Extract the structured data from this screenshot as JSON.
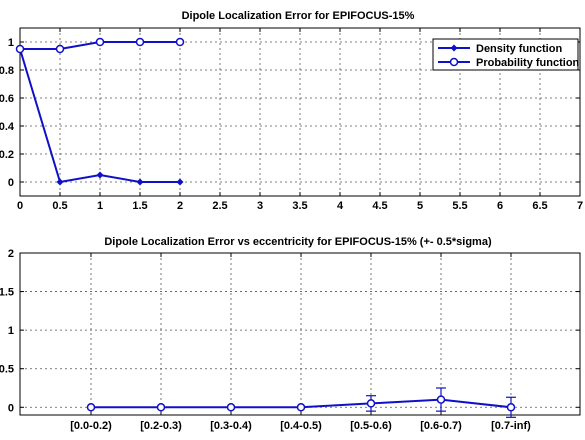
{
  "chart_data": [
    {
      "type": "line",
      "title": "Dipole Localization Error for EPIFOCUS-15%",
      "xlabel": "",
      "ylabel": "",
      "xlim": [
        0,
        7
      ],
      "ylim": [
        -0.1,
        1.1
      ],
      "xticks": [
        "0",
        "0.5",
        "1",
        "1.5",
        "2",
        "2.5",
        "3",
        "3.5",
        "4",
        "4.5",
        "5",
        "5.5",
        "6",
        "6.5",
        "7"
      ],
      "yticks": [
        "0",
        "0.2",
        "0.4",
        "0.6",
        "0.8",
        "1"
      ],
      "grid": true,
      "legend_position": "top-right",
      "series": [
        {
          "name": "Density function",
          "marker": "diamond",
          "color": "#1010c8",
          "x": [
            0,
            0.5,
            1,
            1.5,
            2
          ],
          "y": [
            0.95,
            0.0,
            0.05,
            0.0,
            0.0
          ]
        },
        {
          "name": "Probability function",
          "marker": "circle",
          "color": "#1010c8",
          "x": [
            0,
            0.5,
            1,
            1.5,
            2
          ],
          "y": [
            0.95,
            0.95,
            1.0,
            1.0,
            1.0
          ]
        }
      ]
    },
    {
      "type": "line",
      "title": "Dipole Localization Error vs eccentricity for EPIFOCUS-15% (+- 0.5*sigma)",
      "xlabel": "",
      "ylabel": "",
      "ylim": [
        -0.1,
        2
      ],
      "yticks": [
        "0",
        "0.5",
        "1",
        "1.5",
        "2"
      ],
      "grid": true,
      "categories": [
        "[0.0-0.2)",
        "[0.2-0.3)",
        "[0.3-0.4)",
        "[0.4-0.5)",
        "[0.5-0.6)",
        "[0.6-0.7)",
        "[0.7-inf)"
      ],
      "series": [
        {
          "marker": "circle",
          "color": "#1010c8",
          "values": [
            0,
            0,
            0,
            0,
            0.05,
            0.1,
            0.0
          ],
          "error": [
            0,
            0,
            0,
            0,
            0.1,
            0.15,
            0.13
          ]
        }
      ]
    }
  ]
}
